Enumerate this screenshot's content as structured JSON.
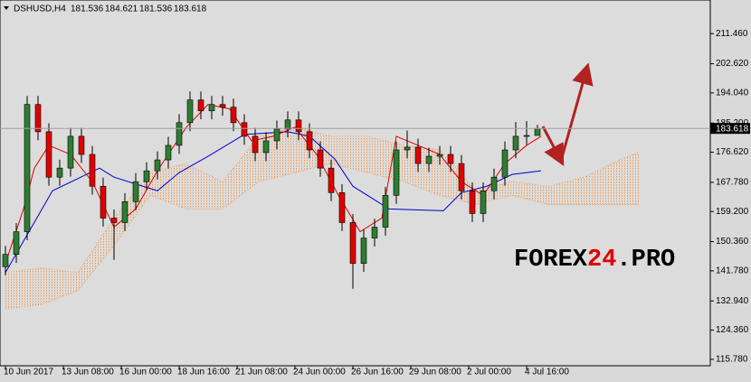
{
  "header": {
    "symbol": "DSHUSD,H4",
    "quote": [
      181.536,
      184.621,
      181.536,
      183.618
    ]
  },
  "watermark": [
    "FOREX",
    "24",
    ".PRO"
  ],
  "chart_data": {
    "type": "candlestick",
    "up_color": "#2e7d32",
    "down_color": "#e00000",
    "x": [
      0,
      3,
      6,
      9,
      12,
      15,
      18,
      21,
      24,
      27,
      30,
      33,
      36,
      39,
      42,
      45,
      48,
      51,
      54,
      57,
      60,
      63,
      66,
      69,
      72,
      75,
      78,
      81,
      84,
      87,
      90,
      93,
      96,
      99,
      102,
      105,
      108,
      111,
      114,
      117,
      120,
      123,
      126,
      129,
      132,
      135,
      138,
      141,
      144,
      147
    ],
    "ohlc": [
      [
        143.0,
        149.11,
        140.5,
        146.61
      ],
      [
        146.61,
        155.78,
        144.11,
        153.28
      ],
      [
        153.28,
        193.15,
        150.78,
        190.65
      ],
      [
        190.65,
        193.15,
        180.14,
        182.64
      ],
      [
        182.64,
        185.14,
        166.79,
        169.29
      ],
      [
        169.29,
        174.46,
        166.79,
        171.96
      ],
      [
        171.96,
        183.81,
        169.46,
        181.31
      ],
      [
        181.31,
        183.81,
        173.47,
        175.97
      ],
      [
        175.97,
        178.47,
        164.13,
        166.63
      ],
      [
        166.63,
        169.13,
        154.78,
        157.28
      ],
      [
        157.28,
        159.78,
        145.0,
        155.95
      ],
      [
        155.95,
        164.59,
        153.45,
        162.09
      ],
      [
        162.09,
        170.46,
        159.59,
        167.96
      ],
      [
        167.96,
        173.66,
        165.46,
        171.16
      ],
      [
        171.16,
        176.87,
        168.66,
        174.37
      ],
      [
        174.37,
        181.14,
        171.87,
        178.64
      ],
      [
        178.64,
        187.81,
        176.14,
        185.31
      ],
      [
        185.31,
        194.48,
        182.81,
        191.98
      ],
      [
        191.98,
        194.48,
        186.28,
        188.78
      ],
      [
        188.78,
        193.15,
        186.28,
        190.65
      ],
      [
        190.65,
        193.15,
        187.35,
        189.85
      ],
      [
        189.85,
        192.35,
        182.81,
        185.31
      ],
      [
        185.31,
        187.81,
        178.81,
        181.31
      ],
      [
        181.31,
        183.81,
        174.0,
        176.5
      ],
      [
        176.5,
        182.47,
        174.0,
        179.97
      ],
      [
        179.97,
        185.94,
        177.47,
        183.44
      ],
      [
        183.44,
        188.61,
        180.94,
        186.11
      ],
      [
        186.11,
        188.61,
        180.14,
        182.64
      ],
      [
        182.64,
        185.14,
        174.8,
        177.3
      ],
      [
        177.3,
        179.8,
        169.46,
        171.96
      ],
      [
        171.96,
        174.46,
        162.26,
        164.76
      ],
      [
        164.76,
        167.26,
        153.45,
        155.95
      ],
      [
        155.95,
        158.45,
        136.5,
        143.94
      ],
      [
        143.94,
        153.91,
        141.44,
        151.41
      ],
      [
        151.41,
        157.11,
        148.91,
        154.61
      ],
      [
        154.61,
        166.46,
        152.11,
        163.96
      ],
      [
        163.96,
        179.8,
        161.46,
        177.3
      ],
      [
        177.3,
        183.0,
        174.8,
        178.1
      ],
      [
        178.1,
        180.6,
        170.8,
        173.3
      ],
      [
        173.3,
        177.93,
        170.8,
        175.43
      ],
      [
        175.43,
        178.47,
        172.93,
        175.97
      ],
      [
        175.97,
        178.47,
        170.8,
        173.3
      ],
      [
        173.3,
        175.8,
        162.79,
        165.29
      ],
      [
        165.29,
        167.79,
        156.12,
        158.62
      ],
      [
        158.62,
        167.79,
        156.12,
        165.29
      ],
      [
        165.29,
        171.79,
        162.79,
        169.29
      ],
      [
        169.29,
        179.8,
        166.79,
        177.3
      ],
      [
        177.3,
        185.5,
        174.8,
        181.31
      ],
      [
        181.31,
        185.8,
        178.81,
        181.54
      ],
      [
        181.54,
        184.62,
        181.54,
        183.62
      ]
    ],
    "indicators": [
      {
        "color": "#0000cc",
        "x": [
          0,
          13,
          26,
          30,
          42,
          48,
          56,
          66,
          78,
          84,
          91,
          96,
          106,
          121,
          126,
          133,
          140,
          148
        ],
        "values": [
          141.27,
          165.29,
          171.96,
          169.29,
          165.29,
          170.63,
          175.43,
          181.84,
          182.64,
          181.31,
          174.63,
          166.63,
          159.95,
          159.42,
          164.76,
          166.63,
          170.1,
          171.16
        ]
      },
      {
        "color": "#e00000",
        "x": [
          0,
          5,
          8,
          12,
          18,
          24,
          30,
          36,
          42,
          50,
          56,
          62,
          68,
          74,
          80,
          86,
          92,
          98,
          104,
          108,
          114,
          120,
          126,
          132,
          138,
          144,
          148
        ],
        "values": [
          143.94,
          159.95,
          171.96,
          178.64,
          175.97,
          167.96,
          154.61,
          159.95,
          171.16,
          183.98,
          190.65,
          189.31,
          179.97,
          181.31,
          183.98,
          175.97,
          163.96,
          153.28,
          157.28,
          181.31,
          178.64,
          175.97,
          167.96,
          163.96,
          173.3,
          178.64,
          181.31
        ]
      }
    ],
    "cloud": {
      "color": "#f39a4e",
      "x": [
        0,
        10,
        20,
        30,
        40,
        50,
        60,
        70,
        80,
        90,
        100,
        110,
        120,
        130,
        140,
        150,
        160,
        170,
        175
      ],
      "span_a": [
        141.27,
        142.6,
        141.27,
        157.28,
        170.63,
        173.3,
        167.96,
        181.31,
        183.98,
        181.31,
        181.31,
        178.64,
        177.3,
        165.29,
        167.96,
        166.63,
        169.29,
        174.63,
        176.5
      ],
      "span_b": [
        130.59,
        131.93,
        135.93,
        149.28,
        163.96,
        159.95,
        159.95,
        167.96,
        170.63,
        173.3,
        170.63,
        167.96,
        163.96,
        161.29,
        163.96,
        161.29,
        161.29,
        161.29,
        161.29
      ]
    },
    "current_price": 183.618,
    "xlim": [
      -1.5,
      194.75
    ],
    "ylim": [
      113.9,
      221.34
    ],
    "xticks": [
      {
        "value": 0,
        "label": "10 Jun 2017"
      },
      {
        "value": 16,
        "label": "13 Jun 08:00"
      },
      {
        "value": 32,
        "label": "16 Jun 00:00"
      },
      {
        "value": 48,
        "label": "18 Jun 16:00"
      },
      {
        "value": 64,
        "label": "21 Jun 08:00"
      },
      {
        "value": 80,
        "label": "24 Jun 00:00"
      },
      {
        "value": 96,
        "label": "26 Jun 16:00"
      },
      {
        "value": 112,
        "label": "29 Jun 08:00"
      },
      {
        "value": 128,
        "label": "2 Jul 00:00"
      },
      {
        "value": 144,
        "label": "4 Jul 16:00"
      }
    ],
    "yticks": [
      {
        "value": 115.78,
        "label": "115.780"
      },
      {
        "value": 124.36,
        "label": "124.360"
      },
      {
        "value": 132.94,
        "label": "132.940"
      },
      {
        "value": 141.78,
        "label": "141.780"
      },
      {
        "value": 150.36,
        "label": "150.360"
      },
      {
        "value": 159.2,
        "label": "159.200"
      },
      {
        "value": 167.78,
        "label": "167.780"
      },
      {
        "value": 176.62,
        "label": "176.620"
      },
      {
        "value": 185.2,
        "label": "185.200"
      },
      {
        "value": 194.04,
        "label": "194.040"
      },
      {
        "value": 202.62,
        "label": "202.620"
      },
      {
        "value": 211.46,
        "label": "211.460"
      }
    ]
  }
}
